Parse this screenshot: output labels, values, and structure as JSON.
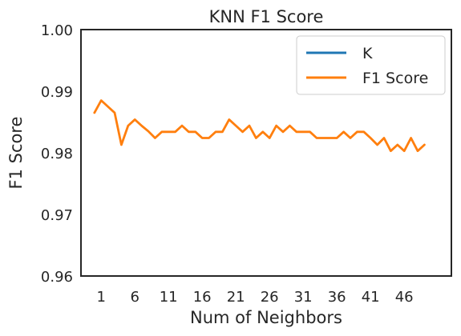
{
  "chart_data": {
    "type": "line",
    "title": "KNN F1 Score",
    "xlabel": "Num of Neighbors",
    "ylabel": "F1 Score",
    "xlim": [
      -2,
      53
    ],
    "ylim": [
      0.96,
      1.0
    ],
    "xticks": [
      1,
      6,
      11,
      16,
      21,
      26,
      31,
      36,
      41,
      46
    ],
    "yticks": [
      0.96,
      0.97,
      0.98,
      0.99,
      1.0
    ],
    "ytick_labels": [
      "0.96",
      "0.97",
      "0.98",
      "0.99",
      "1.00"
    ],
    "grid": false,
    "legend_position": "top-right",
    "legend": [
      "K",
      "F1 Score"
    ],
    "series": [
      {
        "name": "K",
        "color": "#1f77b4",
        "x": [],
        "values": []
      },
      {
        "name": "F1 Score",
        "color": "#ff7f0e",
        "x": [
          0,
          1,
          2,
          3,
          4,
          5,
          6,
          7,
          8,
          9,
          10,
          11,
          12,
          13,
          14,
          15,
          16,
          17,
          18,
          19,
          20,
          21,
          22,
          23,
          24,
          25,
          26,
          27,
          28,
          29,
          30,
          31,
          32,
          33,
          34,
          35,
          36,
          37,
          38,
          39,
          40,
          41,
          42,
          43,
          44,
          45,
          46,
          47,
          48,
          49
        ],
        "values": [
          0.9865,
          0.9885,
          0.9875,
          0.9865,
          0.9813,
          0.9844,
          0.9854,
          0.9844,
          0.9835,
          0.9824,
          0.9834,
          0.9834,
          0.9834,
          0.9844,
          0.9834,
          0.9834,
          0.9824,
          0.9824,
          0.9834,
          0.9834,
          0.9854,
          0.9844,
          0.9834,
          0.9844,
          0.9824,
          0.9834,
          0.9824,
          0.9844,
          0.9834,
          0.9844,
          0.9834,
          0.9834,
          0.9834,
          0.9824,
          0.9824,
          0.9824,
          0.9824,
          0.9834,
          0.9824,
          0.9834,
          0.9834,
          0.9824,
          0.9813,
          0.9824,
          0.9803,
          0.9813,
          0.9803,
          0.9824,
          0.9803,
          0.9813
        ]
      }
    ]
  }
}
